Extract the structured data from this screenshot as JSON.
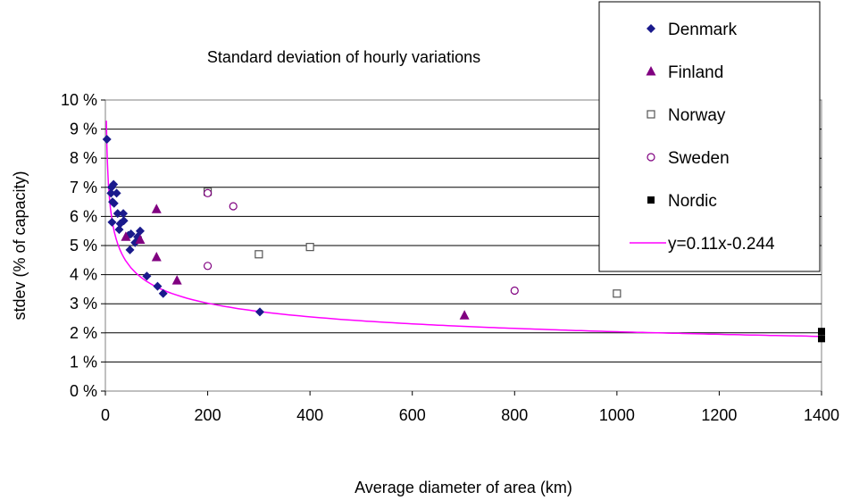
{
  "chart_data": {
    "type": "scatter",
    "title": "Standard deviation of hourly variations",
    "xlabel": "Average diameter of area (km)",
    "ylabel": "stdev (% of capacity)",
    "xlim": [
      0,
      1400
    ],
    "ylim": [
      0,
      10
    ],
    "x_ticks": [
      "0",
      "200",
      "400",
      "600",
      "800",
      "1000",
      "1200",
      "1400"
    ],
    "y_ticks": [
      "0 %",
      "1 %",
      "2 %",
      "3 %",
      "4 %",
      "5 %",
      "6 %",
      "7 %",
      "8 %",
      "9 %",
      "10 %"
    ],
    "grid": "horizontal",
    "legend_position": "top-right",
    "series": [
      {
        "name": "Denmark",
        "marker": "diamond",
        "color": "#1a1a8c",
        "points": [
          [
            3,
            8.65
          ],
          [
            12,
            7.0
          ],
          [
            16,
            7.1
          ],
          [
            11,
            6.8
          ],
          [
            22,
            6.8
          ],
          [
            14,
            6.5
          ],
          [
            17,
            6.45
          ],
          [
            24,
            6.1
          ],
          [
            35,
            6.1
          ],
          [
            13,
            5.8
          ],
          [
            36,
            5.85
          ],
          [
            29,
            5.75
          ],
          [
            27,
            5.55
          ],
          [
            50,
            5.4
          ],
          [
            45,
            5.35
          ],
          [
            68,
            5.5
          ],
          [
            63,
            5.3
          ],
          [
            58,
            5.1
          ],
          [
            48,
            4.85
          ],
          [
            81,
            3.95
          ],
          [
            102,
            3.6
          ],
          [
            113,
            3.35
          ],
          [
            302,
            2.72
          ]
        ]
      },
      {
        "name": "Finland",
        "marker": "triangle",
        "color": "#800080",
        "points": [
          [
            40,
            5.3
          ],
          [
            68,
            5.2
          ],
          [
            100,
            6.25
          ],
          [
            100,
            4.6
          ],
          [
            140,
            3.8
          ],
          [
            702,
            2.6
          ]
        ]
      },
      {
        "name": "Norway",
        "marker": "square-open",
        "color": "#555555",
        "points": [
          [
            200,
            6.85
          ],
          [
            300,
            4.7
          ],
          [
            400,
            4.95
          ],
          [
            1000,
            3.35
          ]
        ]
      },
      {
        "name": "Sweden",
        "marker": "circle-open",
        "color": "#800080",
        "points": [
          [
            200,
            6.8
          ],
          [
            250,
            6.35
          ],
          [
            200,
            4.3
          ],
          [
            800,
            3.45
          ]
        ]
      },
      {
        "name": "Nordic",
        "marker": "square",
        "color": "#000000",
        "points": [
          [
            1400,
            2.05
          ],
          [
            1400,
            1.8
          ]
        ]
      }
    ],
    "trendline": {
      "name": "y=0.11x-0.244",
      "color": "#ff00ff",
      "a": 0.11,
      "b": -0.244
    }
  }
}
